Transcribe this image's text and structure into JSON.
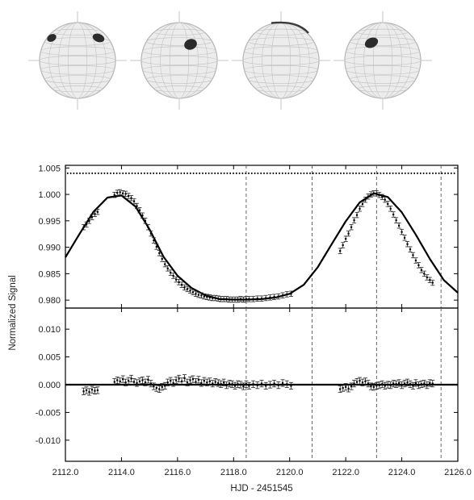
{
  "chart_data": {
    "type": "line",
    "title": "",
    "xlabel": "HJD - 2451545",
    "ylabel": "Normalized Signal",
    "xlim": [
      2112.0,
      2126.0
    ],
    "x_ticks": [
      "2112.0",
      "2114.0",
      "2116.0",
      "2118.0",
      "2120.0",
      "2122.0",
      "2124.0",
      "2126.0"
    ],
    "grid": false,
    "legend": "none",
    "vertical_markers": [
      2118.45,
      2120.8,
      2123.1,
      2125.4
    ],
    "star_icons": [
      {
        "name": "star-phase-1-icon",
        "spots": 2
      },
      {
        "name": "star-phase-2-icon",
        "spots": 1
      },
      {
        "name": "star-phase-3-icon",
        "spots": 0
      },
      {
        "name": "star-phase-4-icon",
        "spots": 1
      }
    ],
    "panels": [
      {
        "name": "light-curve-panel",
        "ylim": [
          0.9785,
          1.0055
        ],
        "y_ticks": [
          "1.005",
          "1.000",
          "0.995",
          "0.990",
          "0.985",
          "0.980"
        ],
        "dotted_reference_y": 1.004,
        "series": [
          {
            "kind": "model",
            "x": [
              2112.0,
              2112.5,
              2113.0,
              2113.5,
              2114.0,
              2114.5,
              2115.0,
              2115.5,
              2116.0,
              2116.5,
              2117.0,
              2117.5,
              2118.0,
              2118.5,
              2119.0,
              2119.5,
              2120.0,
              2120.5,
              2121.0,
              2121.5,
              2122.0,
              2122.5,
              2123.0,
              2123.5,
              2124.0,
              2124.5,
              2125.0,
              2125.5,
              2126.0
            ],
            "y": [
              0.9881,
              0.9925,
              0.9967,
              0.9994,
              0.9998,
              0.9977,
              0.9934,
              0.9882,
              0.9846,
              0.9823,
              0.9809,
              0.9802,
              0.9801,
              0.9801,
              0.9802,
              0.9805,
              0.9812,
              0.9829,
              0.9862,
              0.9906,
              0.9949,
              0.9985,
              1.0002,
              0.9995,
              0.9966,
              0.9924,
              0.9878,
              0.9838,
              0.9814
            ]
          },
          {
            "kind": "observed",
            "x": [
              2112.65,
              2112.75,
              2112.85,
              2112.95,
              2113.05,
              2113.15,
              2113.75,
              2113.85,
              2113.95,
              2114.05,
              2114.15,
              2114.25,
              2114.35,
              2114.45,
              2114.55,
              2114.65,
              2114.75,
              2114.85,
              2114.95,
              2115.05,
              2115.15,
              2115.25,
              2115.35,
              2115.45,
              2115.55,
              2115.65,
              2115.75,
              2115.85,
              2115.95,
              2116.05,
              2116.15,
              2116.25,
              2116.35,
              2116.45,
              2116.55,
              2116.65,
              2116.75,
              2116.85,
              2116.95,
              2117.05,
              2117.15,
              2117.25,
              2117.35,
              2117.45,
              2117.55,
              2117.65,
              2117.75,
              2117.85,
              2117.95,
              2118.05,
              2118.15,
              2118.25,
              2118.35,
              2118.45,
              2118.55,
              2118.7,
              2118.85,
              2119.0,
              2119.15,
              2119.3,
              2119.45,
              2119.6,
              2119.75,
              2119.9,
              2120.05,
              2121.8,
              2121.9,
              2122.0,
              2122.1,
              2122.2,
              2122.3,
              2122.4,
              2122.5,
              2122.6,
              2122.7,
              2122.8,
              2122.9,
              2123.0,
              2123.1,
              2123.2,
              2123.3,
              2123.4,
              2123.5,
              2123.6,
              2123.7,
              2123.8,
              2123.9,
              2124.0,
              2124.1,
              2124.2,
              2124.3,
              2124.4,
              2124.5,
              2124.6,
              2124.7,
              2124.8,
              2124.9,
              2125.0,
              2125.1
            ],
            "y": [
              0.9938,
              0.9943,
              0.995,
              0.9957,
              0.9963,
              0.9967,
              0.9999,
              1.0003,
              1.0004,
              1.0002,
              1.0001,
              0.9997,
              0.9993,
              0.9987,
              0.9978,
              0.997,
              0.996,
              0.995,
              0.9938,
              0.9926,
              0.9913,
              0.9901,
              0.9889,
              0.9878,
              0.9868,
              0.986,
              0.9852,
              0.9846,
              0.9839,
              0.9834,
              0.9829,
              0.9824,
              0.9821,
              0.9818,
              0.9815,
              0.9812,
              0.981,
              0.9809,
              0.9807,
              0.9806,
              0.9805,
              0.9804,
              0.9804,
              0.9803,
              0.9802,
              0.9802,
              0.9802,
              0.9801,
              0.9801,
              0.9801,
              0.9801,
              0.9802,
              0.9801,
              0.9802,
              0.9802,
              0.9802,
              0.9803,
              0.9803,
              0.9804,
              0.9805,
              0.9806,
              0.9807,
              0.9809,
              0.9811,
              0.9812,
              0.9893,
              0.9904,
              0.9916,
              0.9926,
              0.9938,
              0.9951,
              0.9961,
              0.9973,
              0.9982,
              0.999,
              0.9996,
              1.0,
              1.0002,
              1.0002,
              0.9999,
              0.9995,
              0.999,
              0.9982,
              0.9973,
              0.9962,
              0.9951,
              0.9941,
              0.9929,
              0.9918,
              0.9906,
              0.9896,
              0.9885,
              0.9875,
              0.9866,
              0.9857,
              0.985,
              0.9843,
              0.9838,
              0.9833
            ],
            "err": 0.0005
          }
        ]
      },
      {
        "name": "residuals-panel",
        "ylim": [
          -0.0138,
          0.0138
        ],
        "y_ticks": [
          "0.010",
          "0.005",
          "0.000",
          "-0.005",
          "-0.010"
        ],
        "zero_line_y": 0.0,
        "series": [
          {
            "kind": "residuals",
            "x": [
              2112.65,
              2112.75,
              2112.85,
              2112.95,
              2113.05,
              2113.15,
              2113.75,
              2113.85,
              2113.95,
              2114.05,
              2114.15,
              2114.25,
              2114.35,
              2114.45,
              2114.55,
              2114.65,
              2114.75,
              2114.85,
              2114.95,
              2115.05,
              2115.15,
              2115.25,
              2115.35,
              2115.45,
              2115.55,
              2115.65,
              2115.75,
              2115.85,
              2115.95,
              2116.05,
              2116.15,
              2116.25,
              2116.35,
              2116.45,
              2116.55,
              2116.65,
              2116.75,
              2116.85,
              2116.95,
              2117.05,
              2117.15,
              2117.25,
              2117.35,
              2117.45,
              2117.55,
              2117.65,
              2117.75,
              2117.85,
              2117.95,
              2118.05,
              2118.15,
              2118.25,
              2118.35,
              2118.45,
              2118.55,
              2118.7,
              2118.85,
              2119.0,
              2119.15,
              2119.3,
              2119.45,
              2119.6,
              2119.75,
              2119.9,
              2120.05,
              2121.8,
              2121.9,
              2122.0,
              2122.1,
              2122.2,
              2122.3,
              2122.4,
              2122.5,
              2122.6,
              2122.7,
              2122.8,
              2122.9,
              2123.0,
              2123.1,
              2123.2,
              2123.3,
              2123.4,
              2123.5,
              2123.6,
              2123.7,
              2123.8,
              2123.9,
              2124.0,
              2124.1,
              2124.2,
              2124.3,
              2124.4,
              2124.5,
              2124.6,
              2124.7,
              2124.8,
              2124.9,
              2125.0,
              2125.1
            ],
            "y": [
              -0.0012,
              -0.001,
              -0.0013,
              -0.0009,
              -0.0011,
              -0.001,
              0.0005,
              0.0008,
              0.0006,
              0.001,
              0.0004,
              0.0007,
              0.0011,
              0.0005,
              0.0003,
              0.0006,
              0.0008,
              0.0004,
              0.0009,
              0.0002,
              -0.0003,
              -0.0006,
              -0.0008,
              -0.0004,
              -0.0002,
              0.0004,
              0.0007,
              0.0003,
              0.0008,
              0.0011,
              0.0006,
              0.0012,
              0.0004,
              0.0008,
              0.001,
              0.0005,
              0.0009,
              0.0003,
              0.0007,
              0.0004,
              0.0006,
              0.0002,
              0.0005,
              0.0003,
              0.0001,
              0.0004,
              -0.0001,
              0.0002,
              0.0001,
              -0.0002,
              0.0001,
              0.0,
              -0.0003,
              0.0001,
              -0.0002,
              0.0001,
              -0.0001,
              0.0002,
              -0.0002,
              0.0,
              0.0002,
              -0.0001,
              0.0003,
              0.0001,
              -0.0002,
              -0.0008,
              -0.0006,
              -0.0004,
              -0.0007,
              -0.0003,
              0.0002,
              0.0005,
              0.0007,
              0.0004,
              0.0006,
              0.0002,
              -0.0003,
              -0.0004,
              -0.0002,
              -0.0001,
              0.0001,
              -0.0002,
              0.0,
              -0.0001,
              0.0002,
              0.0001,
              0.0003,
              -0.0001,
              0.0002,
              0.0004,
              0.0001,
              -0.0002,
              0.0003,
              -0.0001,
              0.0001,
              0.0002,
              -0.0001,
              0.0003,
              0.0002
            ],
            "err": 0.0006
          }
        ]
      }
    ]
  }
}
